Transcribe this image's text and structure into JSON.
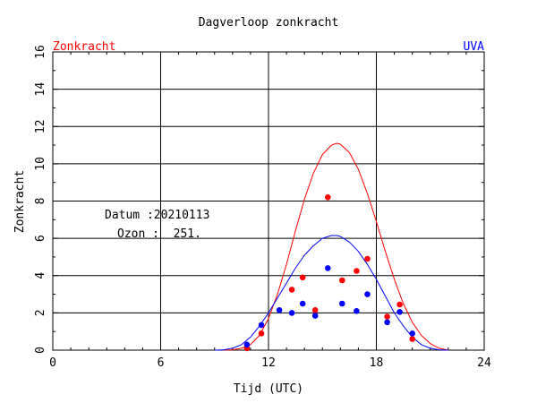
{
  "chart_data": {
    "type": "scatter",
    "title": "Dagverloop zonkracht",
    "xlabel": "Tijd (UTC)",
    "ylabel": "Zonkracht",
    "xlim": [
      0,
      24
    ],
    "ylim": [
      0,
      16
    ],
    "x_ticks": [
      0,
      6,
      12,
      18,
      24
    ],
    "y_ticks": [
      0,
      2,
      4,
      6,
      8,
      10,
      12,
      14,
      16
    ],
    "grid": true,
    "legend": {
      "left_label": "Zonkracht",
      "right_label": "UVA"
    },
    "annotations": {
      "datum_label": "Datum :20210113",
      "ozon_label": "Ozon :  251."
    },
    "series": [
      {
        "name": "Zonkracht",
        "kind": "line",
        "color": "#ff0000",
        "x": [
          9.5,
          10.0,
          10.5,
          11.0,
          11.5,
          12.0,
          12.5,
          13.0,
          13.5,
          14.0,
          14.5,
          15.0,
          15.5,
          15.8,
          16.0,
          16.5,
          17.0,
          17.5,
          18.0,
          18.5,
          19.0,
          19.5,
          20.0,
          20.5,
          21.0,
          21.5,
          22.0
        ],
        "y": [
          0.0,
          0.02,
          0.1,
          0.3,
          0.8,
          1.7,
          3.0,
          4.6,
          6.4,
          8.1,
          9.5,
          10.5,
          11.0,
          11.1,
          11.05,
          10.6,
          9.7,
          8.4,
          6.9,
          5.3,
          3.8,
          2.5,
          1.5,
          0.8,
          0.35,
          0.1,
          0.0
        ]
      },
      {
        "name": "UVA",
        "kind": "line",
        "color": "#0000ff",
        "x": [
          9.0,
          9.5,
          10.0,
          10.5,
          11.0,
          11.5,
          12.0,
          12.5,
          13.0,
          13.5,
          14.0,
          14.5,
          15.0,
          15.5,
          15.8,
          16.0,
          16.5,
          17.0,
          17.5,
          18.0,
          18.5,
          19.0,
          19.5,
          20.0,
          20.5,
          21.0,
          21.5,
          22.0
        ],
        "y": [
          0.0,
          0.02,
          0.1,
          0.3,
          0.7,
          1.3,
          2.0,
          2.8,
          3.6,
          4.4,
          5.1,
          5.6,
          6.0,
          6.15,
          6.15,
          6.1,
          5.8,
          5.3,
          4.6,
          3.8,
          2.9,
          2.0,
          1.3,
          0.7,
          0.3,
          0.1,
          0.02,
          0.0
        ]
      },
      {
        "name": "Zonkracht gemeten",
        "kind": "points",
        "color": "#ff0000",
        "x": [
          10.8,
          11.6,
          13.3,
          13.9,
          14.6,
          15.3,
          16.1,
          16.9,
          17.5,
          18.6,
          19.3,
          20.0
        ],
        "y": [
          0.1,
          0.9,
          3.25,
          3.9,
          2.15,
          8.2,
          3.75,
          4.25,
          4.9,
          1.8,
          2.45,
          0.6
        ]
      },
      {
        "name": "UVA gemeten",
        "kind": "points",
        "color": "#0000ff",
        "x": [
          10.8,
          11.6,
          12.6,
          13.3,
          13.9,
          14.6,
          15.3,
          16.1,
          16.9,
          17.5,
          18.6,
          19.3,
          20.0
        ],
        "y": [
          0.3,
          1.35,
          2.15,
          2.0,
          2.5,
          1.85,
          4.4,
          2.5,
          2.1,
          3.0,
          1.5,
          2.05,
          0.9
        ]
      }
    ]
  }
}
